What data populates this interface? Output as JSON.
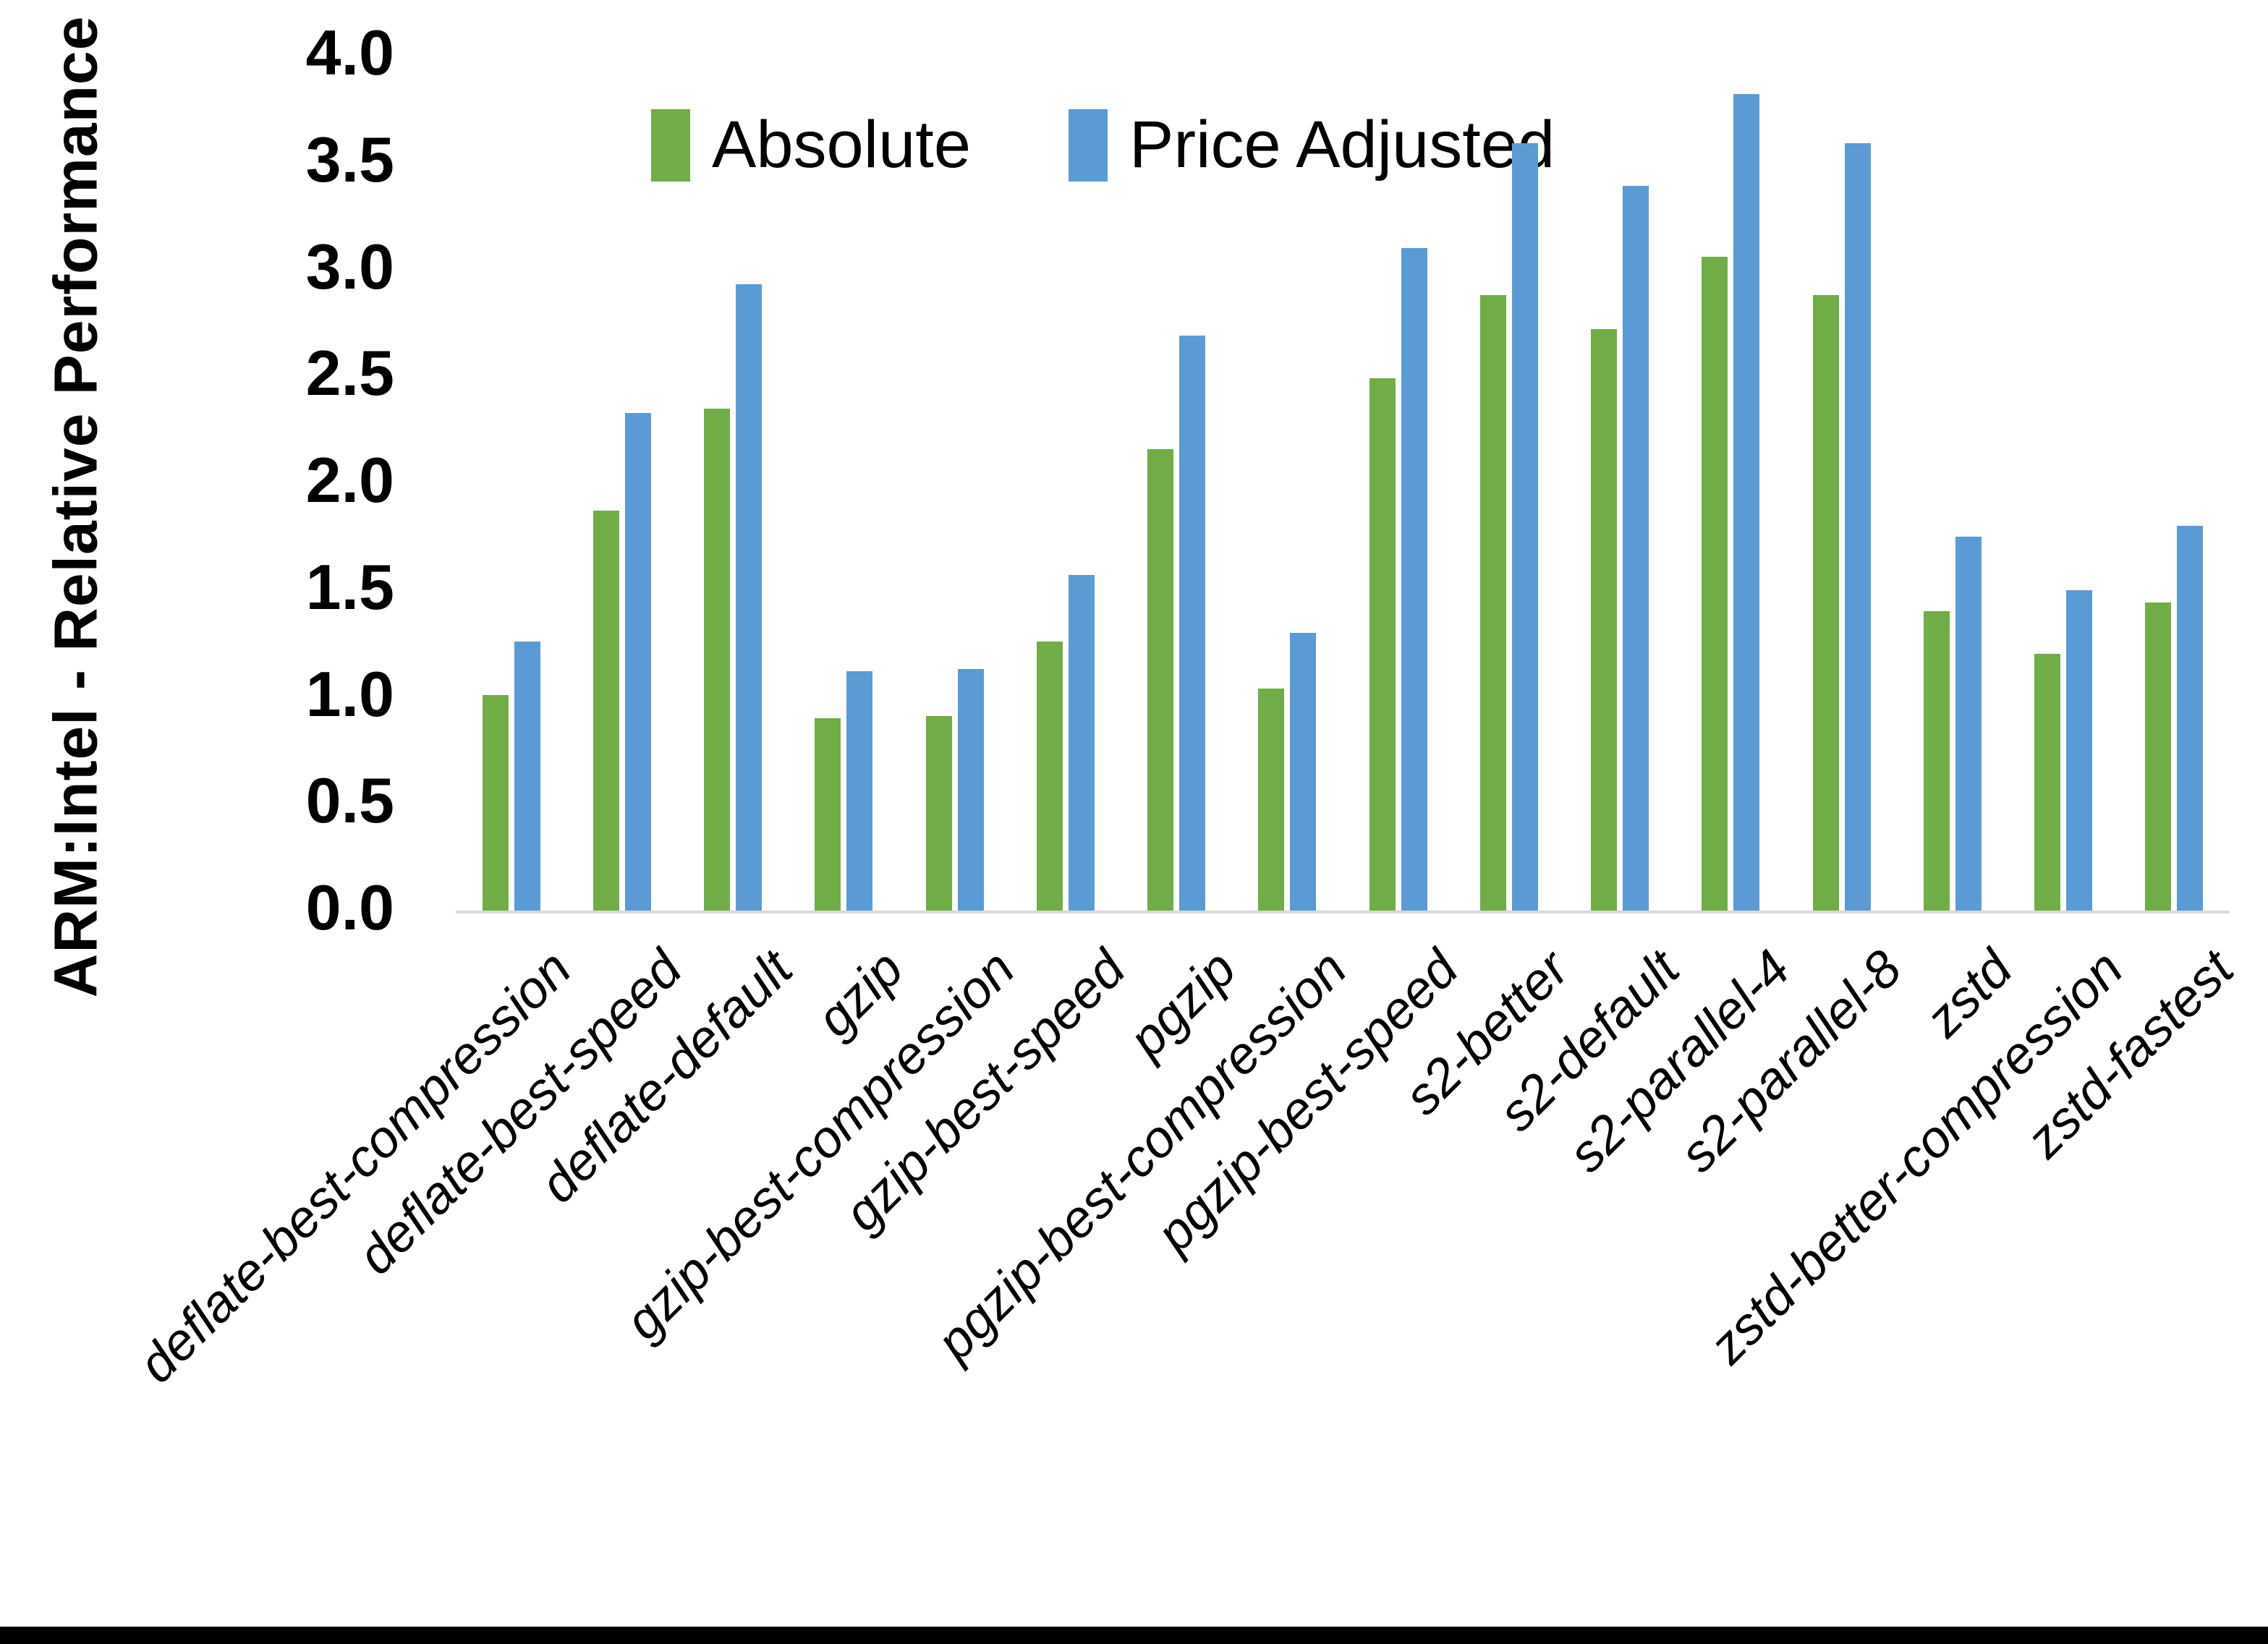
{
  "chart_data": {
    "type": "bar",
    "title": "",
    "xlabel": "",
    "ylabel": "ARM:Intel - Relative Performance",
    "ylim": [
      0.0,
      4.0
    ],
    "ytick_step": 0.5,
    "yticks": [
      "0.0",
      "0.5",
      "1.0",
      "1.5",
      "2.0",
      "2.5",
      "3.0",
      "3.5",
      "4.0"
    ],
    "grid": false,
    "legend_position": "top-center",
    "categories": [
      "deflate-best-compression",
      "deflate-best-speed",
      "deflate-default",
      "gzip",
      "gzip-best-compression",
      "gzip-best-speed",
      "pgzip",
      "pgzip-best-compression",
      "pgzip-best-speed",
      "s2-better",
      "s2-default",
      "s2-parallel-4",
      "s2-parallel-8",
      "zstd",
      "zstd-better-compression",
      "zstd-fastest"
    ],
    "series": [
      {
        "name": "Absolute",
        "color": "#70AD47",
        "values": [
          1.01,
          1.87,
          2.35,
          0.9,
          0.91,
          1.26,
          2.16,
          1.04,
          2.49,
          2.88,
          2.72,
          3.06,
          2.88,
          1.4,
          1.2,
          1.44
        ]
      },
      {
        "name": "Price Adjusted",
        "color": "#5B9BD5",
        "values": [
          1.26,
          2.33,
          2.93,
          1.12,
          1.13,
          1.57,
          2.69,
          1.3,
          3.1,
          3.59,
          3.39,
          3.82,
          3.59,
          1.75,
          1.5,
          1.8
        ]
      }
    ]
  },
  "legend": {
    "absolute_label": "Absolute",
    "price_adjusted_label": "Price Adjusted"
  },
  "axis": {
    "y_title": "ARM:Intel - Relative Performance"
  },
  "colors": {
    "absolute": "#70AD47",
    "price_adjusted": "#5B9BD5",
    "axis_line": "#D9D9D9",
    "text": "#000000",
    "background": "#FFFFFF",
    "bottom_border": "#000000"
  }
}
